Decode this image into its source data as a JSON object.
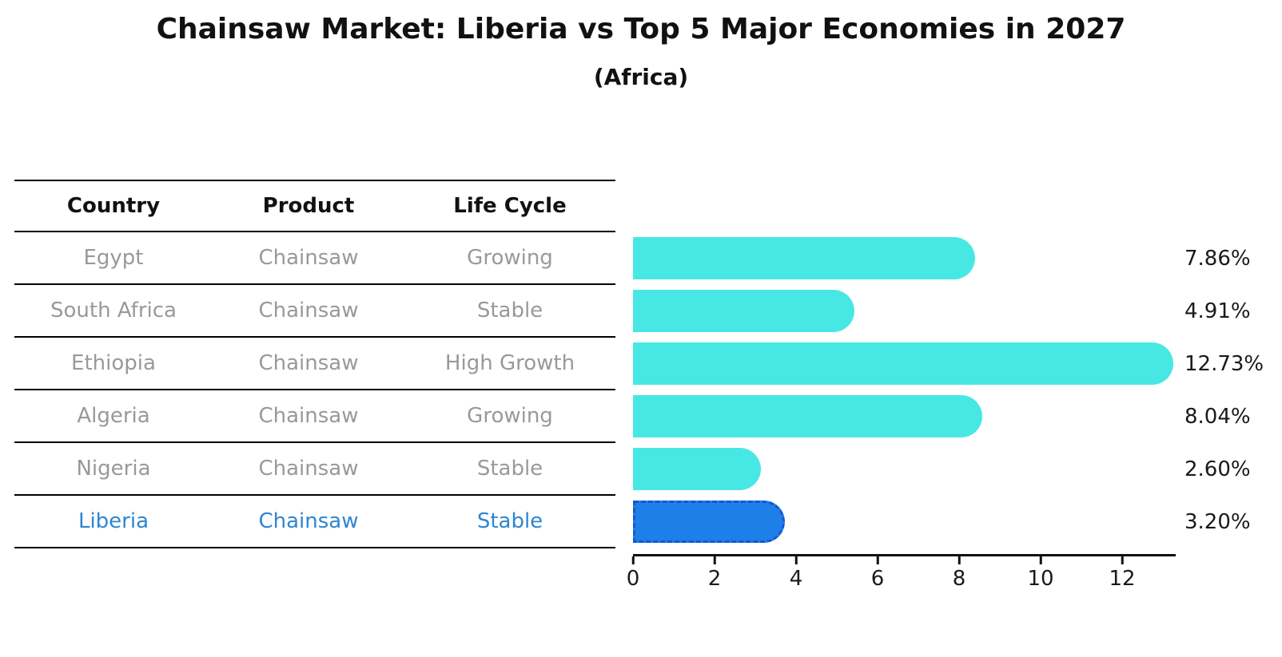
{
  "header": {
    "title": "Chainsaw Market: Liberia vs Top 5 Major Economies in 2027",
    "subtitle": "(Africa)"
  },
  "table": {
    "columns": [
      "Country",
      "Product",
      "Life Cycle"
    ],
    "rows": [
      {
        "country": "Egypt",
        "product": "Chainsaw",
        "life_cycle": "Growing",
        "highlight": false
      },
      {
        "country": "South Africa",
        "product": "Chainsaw",
        "life_cycle": "Stable",
        "highlight": false
      },
      {
        "country": "Ethiopia",
        "product": "Chainsaw",
        "life_cycle": "High Growth",
        "highlight": false
      },
      {
        "country": "Algeria",
        "product": "Chainsaw",
        "life_cycle": "Growing",
        "highlight": false
      },
      {
        "country": "Nigeria",
        "product": "Chainsaw",
        "life_cycle": "Stable",
        "highlight": false
      },
      {
        "country": "Liberia",
        "product": "Chainsaw",
        "life_cycle": "Stable",
        "highlight": true
      }
    ]
  },
  "chart_data": {
    "type": "bar",
    "orientation": "horizontal",
    "title": "Chainsaw Market: Liberia vs Top 5 Major Economies in 2027",
    "subtitle": "(Africa)",
    "categories": [
      "Egypt",
      "South Africa",
      "Ethiopia",
      "Algeria",
      "Nigeria",
      "Liberia"
    ],
    "values": [
      7.86,
      4.91,
      12.73,
      8.04,
      2.6,
      3.2
    ],
    "value_labels": [
      "7.86%",
      "4.91%",
      "12.73%",
      "8.04%",
      "2.60%",
      "3.20%"
    ],
    "highlight_index": 5,
    "xlabel": "",
    "ylabel": "",
    "xlim": [
      0,
      13.3
    ],
    "x_ticks": [
      0,
      2,
      4,
      6,
      8,
      10,
      12
    ],
    "grid": false,
    "legend": false,
    "colors": {
      "bar": "#47e8e4",
      "highlight_bar": "#1f7fe8",
      "highlight_border": "#1558ce",
      "highlight_text": "#2e86d1",
      "row_text": "#999999",
      "axis": "#111111"
    }
  }
}
